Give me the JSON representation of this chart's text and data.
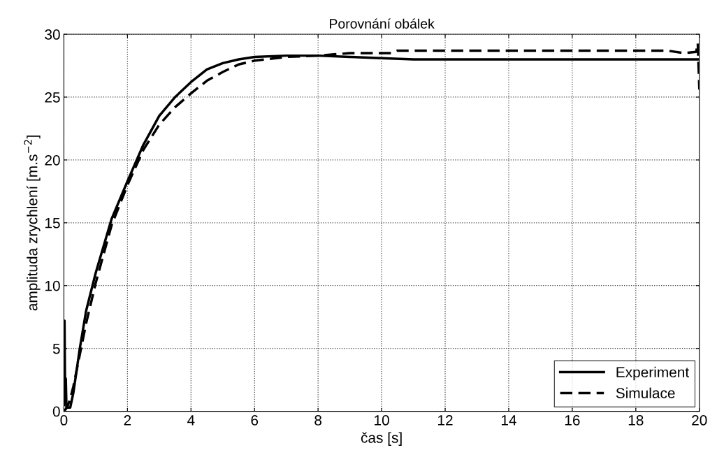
{
  "chart_data": {
    "type": "line",
    "title": "Porovnání obálek",
    "xlabel": "čas [s]",
    "ylabel": "amplituda zrychlení [m.s$^{−2}$]",
    "xlim": [
      0,
      20
    ],
    "ylim": [
      0,
      30
    ],
    "xticks": [
      0,
      2,
      4,
      6,
      8,
      10,
      12,
      14,
      16,
      18,
      20
    ],
    "yticks": [
      0,
      5,
      10,
      15,
      20,
      25,
      30
    ],
    "grid": true,
    "legend": "bottom right",
    "marker": "none",
    "series": [
      {
        "name": "Experiment",
        "color": "#000000",
        "line_style": "solid",
        "x": [
          0,
          0.02,
          0.04,
          0.06,
          0.08,
          0.2,
          0.3,
          0.5,
          0.7,
          1.0,
          1.5,
          2,
          2.5,
          3,
          3.5,
          4,
          4.5,
          5,
          5.5,
          6,
          7,
          8,
          9,
          10,
          11,
          12,
          20
        ],
        "values": [
          0.5,
          7.2,
          0.8,
          2.6,
          0.3,
          0.3,
          1.5,
          5,
          8,
          11,
          15.3,
          18.3,
          21.2,
          23.5,
          25,
          26.2,
          27.2,
          27.7,
          28,
          28.2,
          28.3,
          28.3,
          28.2,
          28.1,
          28.0,
          28.0,
          28.0
        ]
      },
      {
        "name": "Simulace",
        "color": "#000000",
        "line_style": "dashed",
        "x": [
          0,
          0.1,
          0.2,
          0.3,
          0.5,
          0.7,
          1,
          1.5,
          2,
          2.5,
          3,
          3.5,
          4,
          4.5,
          5,
          5.5,
          6,
          7,
          8,
          8.5,
          9,
          10.3,
          10.5,
          19,
          19.5,
          19.9,
          19.95,
          20
        ],
        "values": [
          0,
          0.3,
          1,
          2,
          4.5,
          7,
          10.2,
          14.8,
          18,
          20.8,
          22.8,
          24.2,
          25.3,
          26.3,
          27.0,
          27.6,
          27.9,
          28.2,
          28.3,
          28.4,
          28.5,
          28.5,
          28.7,
          28.7,
          28.5,
          28.6,
          29.3,
          25.6
        ]
      }
    ]
  }
}
